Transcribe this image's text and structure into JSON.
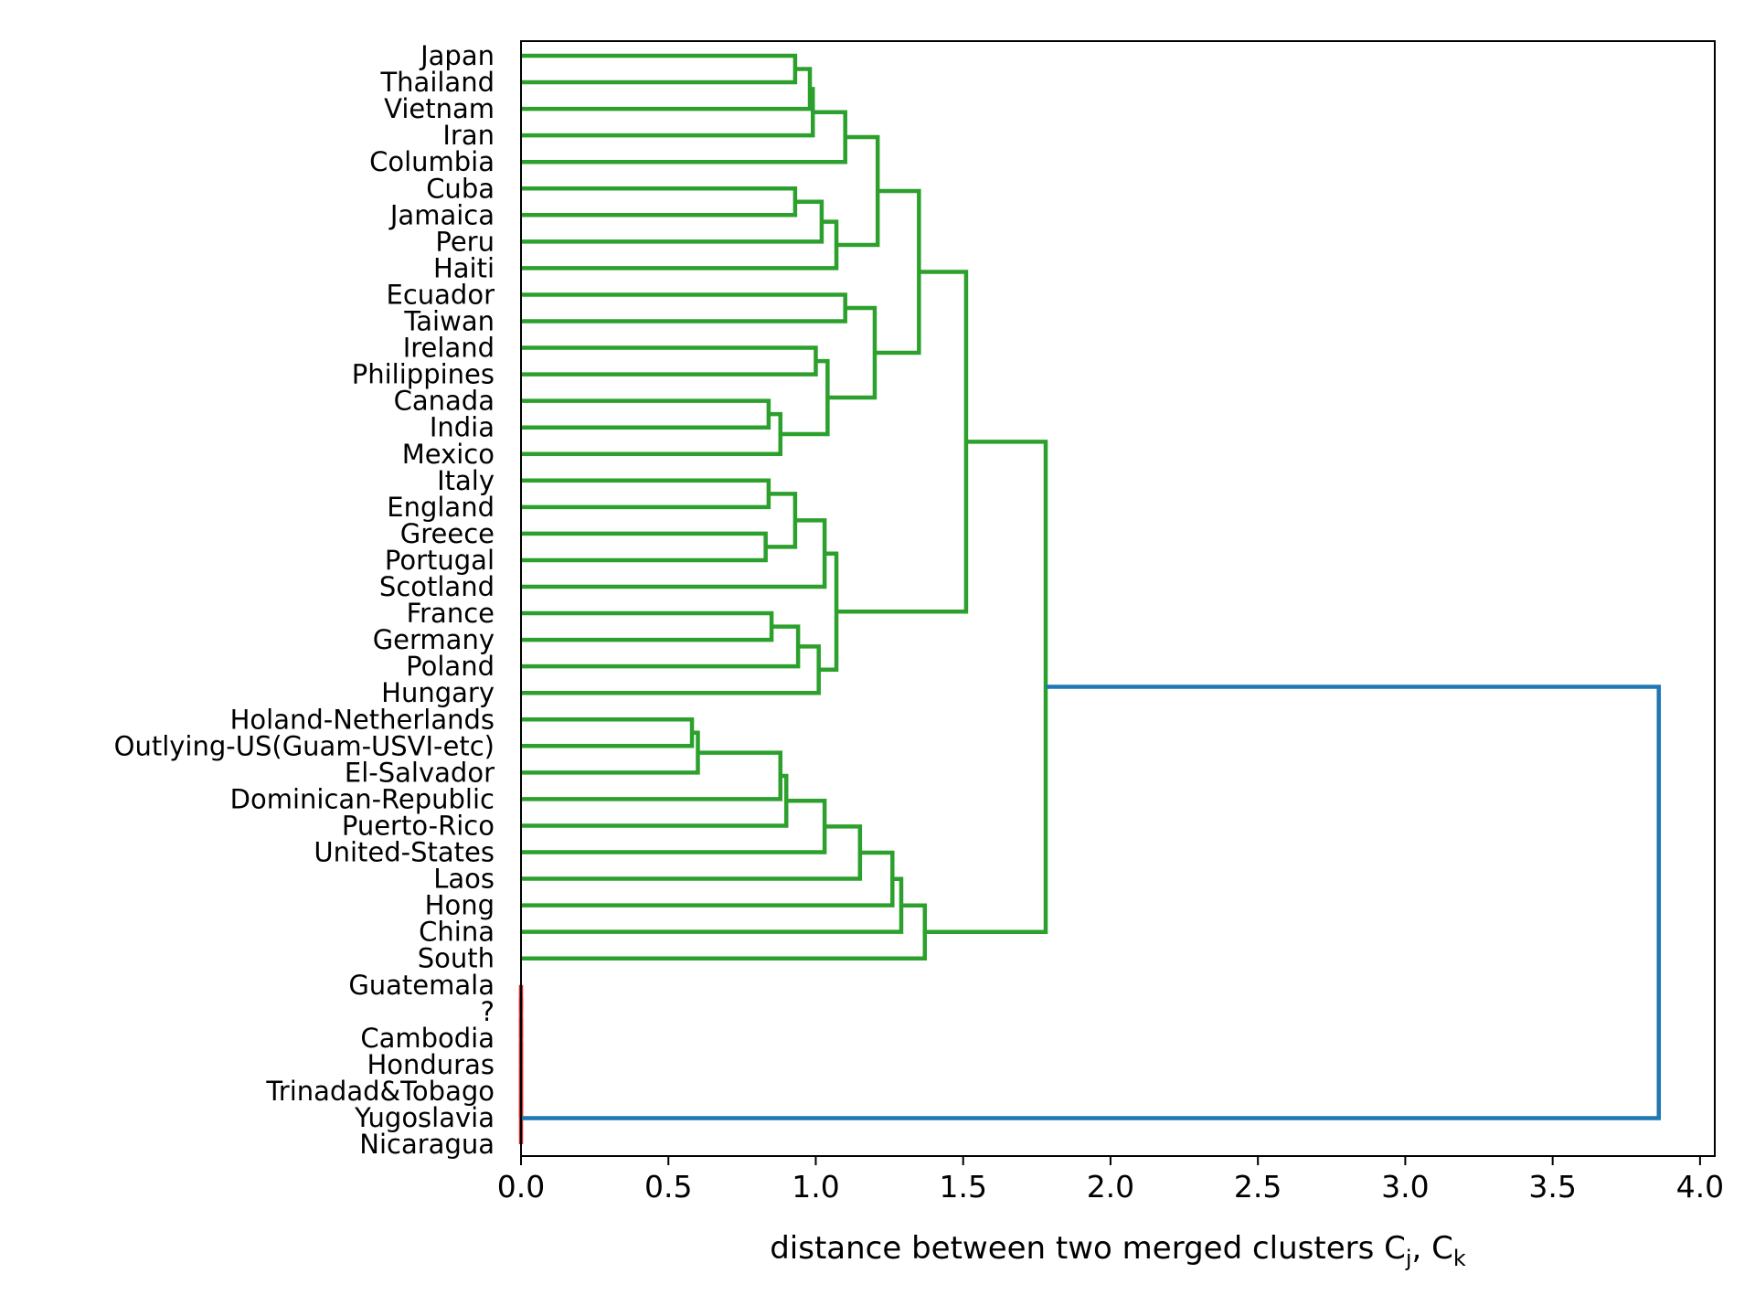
{
  "chart_data": {
    "type": "dendrogram",
    "orientation": "left",
    "xlabel": "distance between two merged clusters C",
    "xlabel_sub_j": "j",
    "xlabel_sep": ", C",
    "xlabel_sub_k": "k",
    "xlim": [
      0.0,
      4.05
    ],
    "xticks": [
      0.0,
      0.5,
      1.0,
      1.5,
      2.0,
      2.5,
      3.0,
      3.5,
      4.0
    ],
    "xtick_labels": [
      "0.0",
      "0.5",
      "1.0",
      "1.5",
      "2.0",
      "2.5",
      "3.0",
      "3.5",
      "4.0"
    ],
    "colors": {
      "cluster_a": "#2ca02c",
      "cluster_b": "#d62728",
      "root": "#1f77b4"
    },
    "leaves": [
      "Japan",
      "Thailand",
      "Vietnam",
      "Iran",
      "Columbia",
      "Cuba",
      "Jamaica",
      "Peru",
      "Haiti",
      "Ecuador",
      "Taiwan",
      "Ireland",
      "Philippines",
      "Canada",
      "India",
      "Mexico",
      "Italy",
      "England",
      "Greece",
      "Portugal",
      "Scotland",
      "France",
      "Germany",
      "Poland",
      "Hungary",
      "Holand-Netherlands",
      "Outlying-US(Guam-USVI-etc)",
      "El-Salvador",
      "Dominican-Republic",
      "Puerto-Rico",
      "United-States",
      "Laos",
      "Hong",
      "China",
      "South",
      "Guatemala",
      "?",
      "Cambodia",
      "Honduras",
      "Trinadad&Tobago",
      "Yugoslavia",
      "Nicaragua"
    ],
    "merges": [
      {
        "id": "N1",
        "a": "Japan",
        "b": "Thailand",
        "height": 0.93,
        "color": "cluster_a"
      },
      {
        "id": "N2",
        "a": "N1",
        "b": "Vietnam",
        "height": 0.98,
        "color": "cluster_a"
      },
      {
        "id": "N3",
        "a": "N2",
        "b": "Iran",
        "height": 0.99,
        "color": "cluster_a"
      },
      {
        "id": "N4",
        "a": "N3",
        "b": "Columbia",
        "height": 1.1,
        "color": "cluster_a"
      },
      {
        "id": "N5",
        "a": "Cuba",
        "b": "Jamaica",
        "height": 0.93,
        "color": "cluster_a"
      },
      {
        "id": "N6",
        "a": "N5",
        "b": "Peru",
        "height": 1.02,
        "color": "cluster_a"
      },
      {
        "id": "N7",
        "a": "N6",
        "b": "Haiti",
        "height": 1.07,
        "color": "cluster_a"
      },
      {
        "id": "N8",
        "a": "N4",
        "b": "N7",
        "height": 1.21,
        "color": "cluster_a"
      },
      {
        "id": "N9",
        "a": "Ecuador",
        "b": "Taiwan",
        "height": 1.1,
        "color": "cluster_a"
      },
      {
        "id": "N10",
        "a": "Ireland",
        "b": "Philippines",
        "height": 1.0,
        "color": "cluster_a"
      },
      {
        "id": "N11",
        "a": "Canada",
        "b": "India",
        "height": 0.84,
        "color": "cluster_a"
      },
      {
        "id": "N12",
        "a": "N11",
        "b": "Mexico",
        "height": 0.88,
        "color": "cluster_a"
      },
      {
        "id": "N13",
        "a": "N10",
        "b": "N12",
        "height": 1.04,
        "color": "cluster_a"
      },
      {
        "id": "N14",
        "a": "N9",
        "b": "N13",
        "height": 1.2,
        "color": "cluster_a"
      },
      {
        "id": "N15",
        "a": "N8",
        "b": "N14",
        "height": 1.35,
        "color": "cluster_a"
      },
      {
        "id": "N16",
        "a": "Italy",
        "b": "England",
        "height": 0.84,
        "color": "cluster_a"
      },
      {
        "id": "N17",
        "a": "Greece",
        "b": "Portugal",
        "height": 0.83,
        "color": "cluster_a"
      },
      {
        "id": "N18",
        "a": "N16",
        "b": "N17",
        "height": 0.93,
        "color": "cluster_a"
      },
      {
        "id": "N19",
        "a": "N18",
        "b": "Scotland",
        "height": 1.03,
        "color": "cluster_a"
      },
      {
        "id": "N20",
        "a": "France",
        "b": "Germany",
        "height": 0.85,
        "color": "cluster_a"
      },
      {
        "id": "N21",
        "a": "N20",
        "b": "Poland",
        "height": 0.94,
        "color": "cluster_a"
      },
      {
        "id": "N22",
        "a": "N21",
        "b": "Hungary",
        "height": 1.01,
        "color": "cluster_a"
      },
      {
        "id": "N23",
        "a": "N19",
        "b": "N22",
        "height": 1.07,
        "color": "cluster_a"
      },
      {
        "id": "N24",
        "a": "N15",
        "b": "N23",
        "height": 1.51,
        "color": "cluster_a"
      },
      {
        "id": "N25",
        "a": "Holand-Netherlands",
        "b": "Outlying-US(Guam-USVI-etc)",
        "height": 0.58,
        "color": "cluster_a"
      },
      {
        "id": "N26",
        "a": "N25",
        "b": "El-Salvador",
        "height": 0.6,
        "color": "cluster_a"
      },
      {
        "id": "N27",
        "a": "N26",
        "b": "Dominican-Republic",
        "height": 0.88,
        "color": "cluster_a"
      },
      {
        "id": "N28",
        "a": "N27",
        "b": "Puerto-Rico",
        "height": 0.9,
        "color": "cluster_a"
      },
      {
        "id": "N29",
        "a": "N28",
        "b": "United-States",
        "height": 1.03,
        "color": "cluster_a"
      },
      {
        "id": "N30",
        "a": "N29",
        "b": "Laos",
        "height": 1.15,
        "color": "cluster_a"
      },
      {
        "id": "N31",
        "a": "N30",
        "b": "Hong",
        "height": 1.26,
        "color": "cluster_a"
      },
      {
        "id": "N32",
        "a": "N31",
        "b": "China",
        "height": 1.29,
        "color": "cluster_a"
      },
      {
        "id": "N33",
        "a": "N32",
        "b": "South",
        "height": 1.37,
        "color": "cluster_a"
      },
      {
        "id": "N34",
        "a": "N24",
        "b": "N33",
        "height": 1.78,
        "color": "cluster_a"
      },
      {
        "id": "N35",
        "a": "Guatemala",
        "b": "?",
        "height": 0.0,
        "color": "cluster_b"
      },
      {
        "id": "N36",
        "a": "N35",
        "b": "Cambodia",
        "height": 0.0,
        "color": "cluster_b"
      },
      {
        "id": "N37",
        "a": "N36",
        "b": "Honduras",
        "height": 0.0,
        "color": "cluster_b"
      },
      {
        "id": "N38",
        "a": "N37",
        "b": "Trinadad&Tobago",
        "height": 0.0,
        "color": "cluster_b"
      },
      {
        "id": "N39",
        "a": "N38",
        "b": "Yugoslavia",
        "height": 0.0,
        "color": "cluster_b"
      },
      {
        "id": "N40",
        "a": "N39",
        "b": "Nicaragua",
        "height": 0.0,
        "color": "cluster_b"
      },
      {
        "id": "N41",
        "a": "N34",
        "b": "N40",
        "height": 3.86,
        "color": "root"
      }
    ]
  }
}
